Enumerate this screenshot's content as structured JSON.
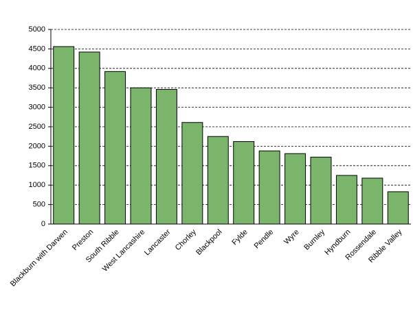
{
  "chart_data": {
    "type": "bar",
    "categories": [
      "Blackburn with Darwen",
      "Preston",
      "South Ribble",
      "West Lancashire",
      "Lancaster",
      "Chorley",
      "Blackpool",
      "Fylde",
      "Pendle",
      "Wyre",
      "Burnley",
      "Hyndburn",
      "Rossendale",
      "Ribble Valley"
    ],
    "values": [
      4560,
      4420,
      3920,
      3500,
      3460,
      2610,
      2250,
      2120,
      1880,
      1810,
      1720,
      1250,
      1180,
      830
    ],
    "color": "#7bb46b",
    "ylim": [
      0,
      5000
    ],
    "yticks": [
      0,
      500,
      1000,
      1500,
      2000,
      2500,
      3000,
      3500,
      4000,
      4500,
      5000
    ],
    "grid": true
  }
}
